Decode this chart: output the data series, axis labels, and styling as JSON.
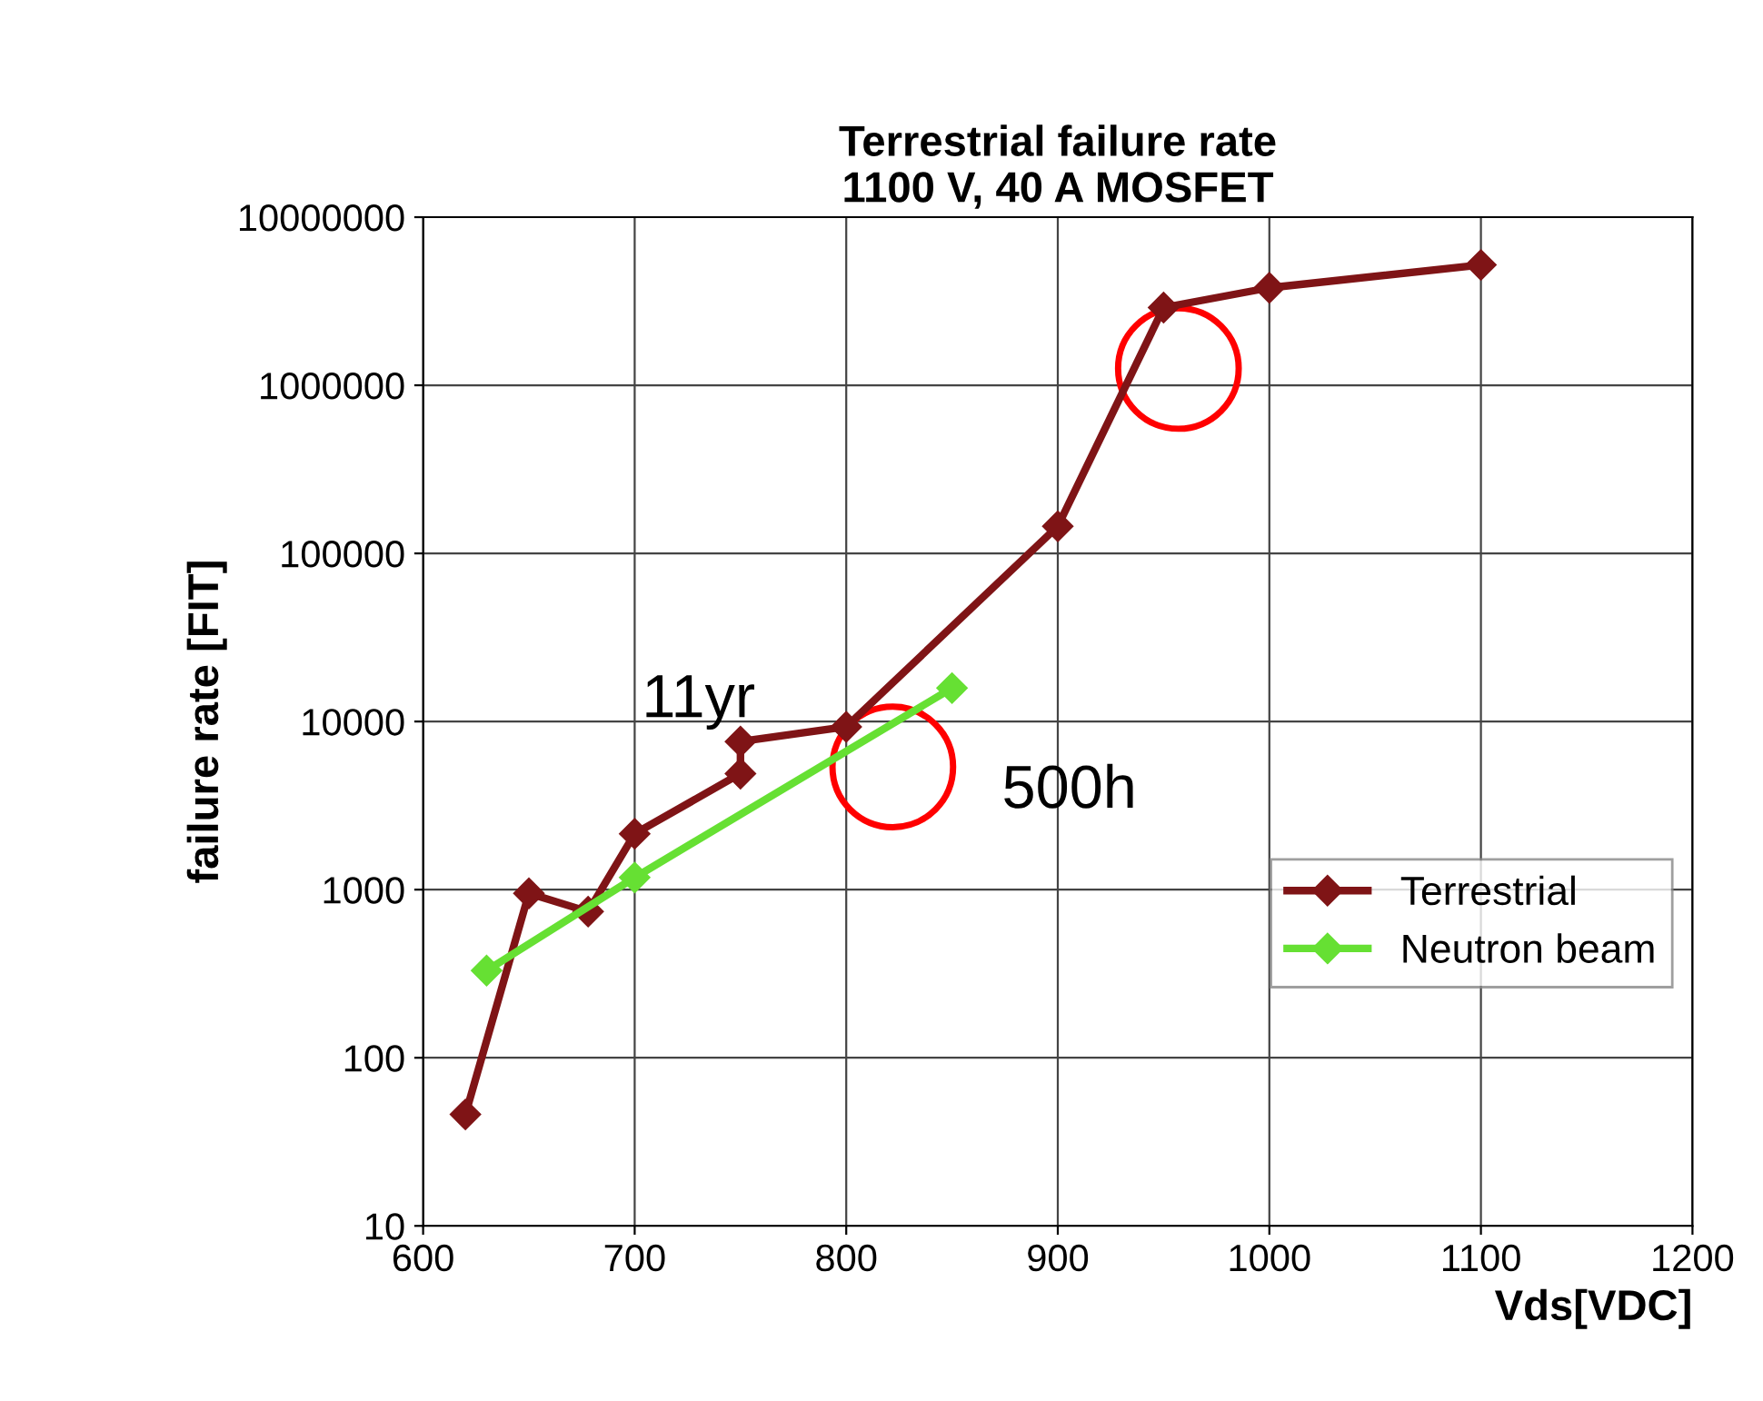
{
  "chart_data": {
    "type": "line",
    "title": "Terrestrial failure rate\n1100 V, 40 A MOSFET",
    "xlabel": "Vds[VDC]",
    "ylabel": "failure rate [FIT]",
    "series": [
      {
        "name": "Terrestrial",
        "color": "#7f1416",
        "x": [
          620,
          650,
          678,
          700,
          750,
          750,
          800,
          900,
          950,
          1000,
          1100
        ],
        "values": [
          46,
          950,
          740,
          2150,
          4900,
          7600,
          9300,
          145000,
          2900000,
          3800000,
          5200000
        ]
      },
      {
        "name": "Neutron beam",
        "color": "#66e033",
        "x": [
          630,
          700,
          850
        ],
        "values": [
          330,
          1180,
          15800
        ]
      }
    ],
    "log": "y",
    "xlim": [
      600,
      1200
    ],
    "xticks": [
      600,
      700,
      800,
      900,
      1000,
      1100,
      1200
    ],
    "ylim": [
      10,
      10000000
    ],
    "yticks": [
      10,
      100,
      1000,
      10000,
      100000,
      1000000,
      10000000
    ],
    "grid": true,
    "legend": "right",
    "marker": "diamond",
    "line_style": "solid",
    "annotations": [
      "11yr",
      "500h"
    ]
  }
}
